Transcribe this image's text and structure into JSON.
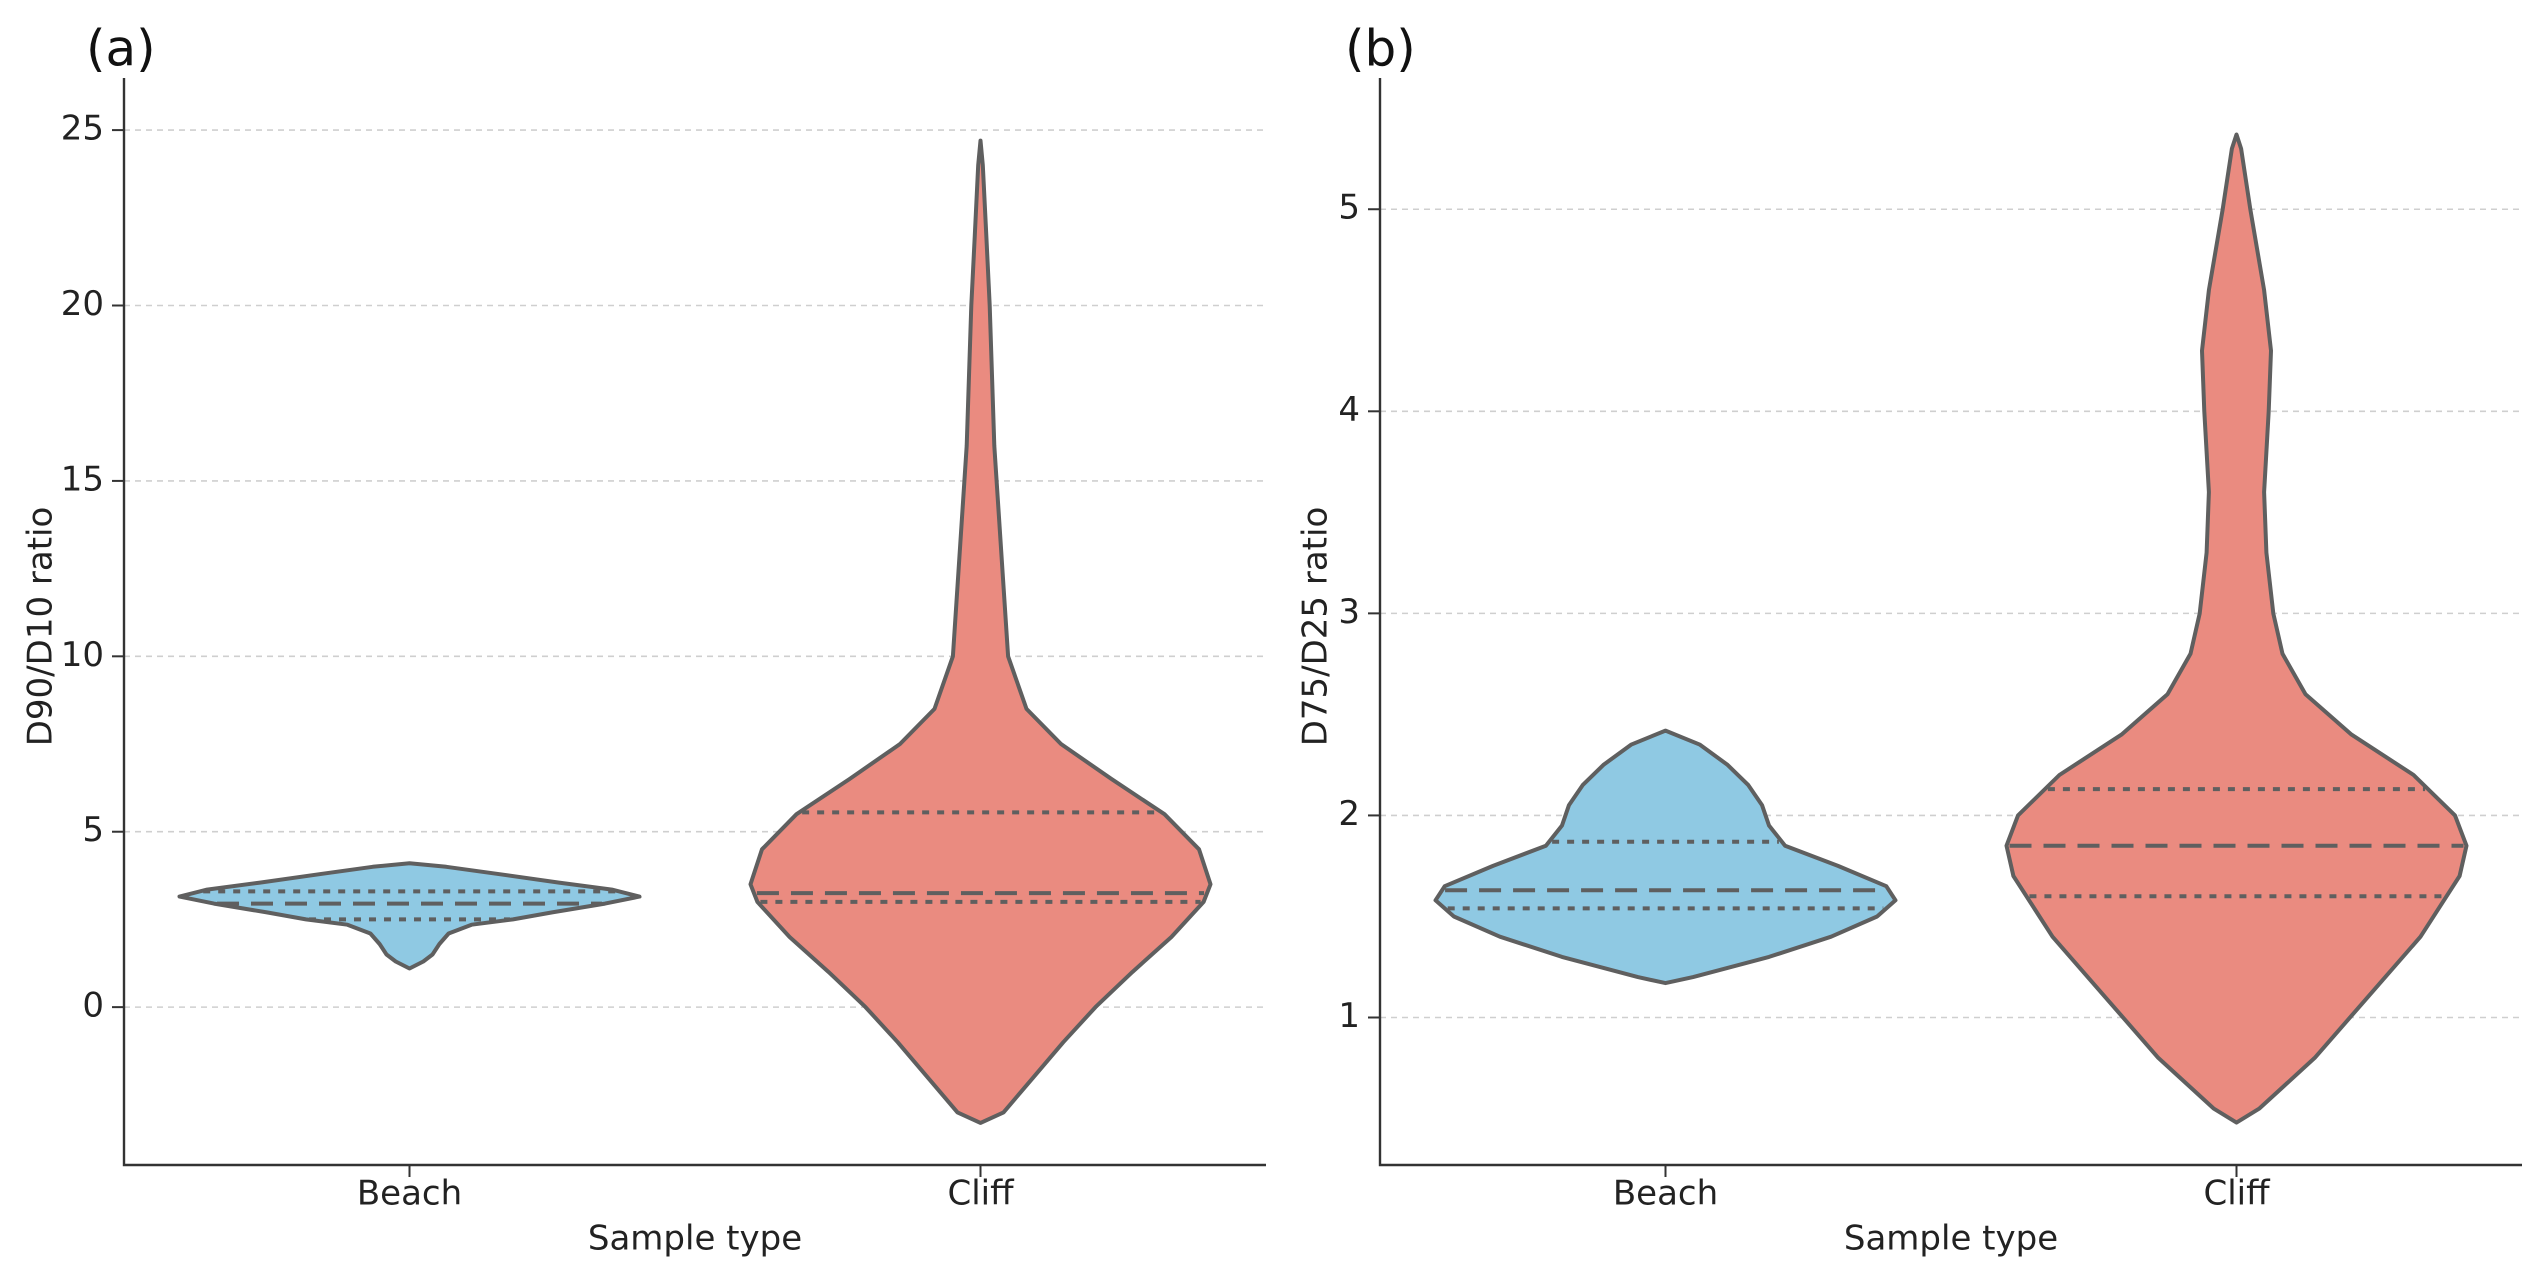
{
  "chart_data": [
    {
      "type": "violin",
      "panel_label": "(a)",
      "xlabel": "Sample type",
      "ylabel": "D90/D10 ratio",
      "ylim": [
        -4.5,
        26.2
      ],
      "yticks": [
        0,
        5,
        10,
        15,
        20,
        25
      ],
      "grid": true,
      "categories": [
        "Beach",
        "Cliff"
      ],
      "colors": [
        "#8fc9e3",
        "#ea8b80"
      ],
      "violins": [
        {
          "name": "Beach",
          "min": 1.1,
          "max": 4.1,
          "q1": 2.5,
          "median": 2.95,
          "q3": 3.3,
          "profile": [
            [
              1.1,
              0.0
            ],
            [
              1.3,
              0.06
            ],
            [
              1.5,
              0.1
            ],
            [
              1.8,
              0.13
            ],
            [
              2.1,
              0.17
            ],
            [
              2.35,
              0.27
            ],
            [
              2.5,
              0.45
            ],
            [
              2.7,
              0.62
            ],
            [
              2.95,
              0.85
            ],
            [
              3.15,
              1.0
            ],
            [
              3.35,
              0.88
            ],
            [
              3.55,
              0.65
            ],
            [
              3.8,
              0.38
            ],
            [
              4.0,
              0.16
            ],
            [
              4.1,
              0.0
            ]
          ]
        },
        {
          "name": "Cliff",
          "min": -3.3,
          "max": 24.7,
          "q1": 3.0,
          "median": 3.25,
          "q3": 5.55,
          "profile": [
            [
              -3.3,
              0.0
            ],
            [
              -3.0,
              0.1
            ],
            [
              -2.0,
              0.23
            ],
            [
              -1.0,
              0.36
            ],
            [
              0.0,
              0.5
            ],
            [
              1.0,
              0.66
            ],
            [
              2.0,
              0.83
            ],
            [
              3.0,
              0.97
            ],
            [
              3.5,
              1.0
            ],
            [
              4.5,
              0.95
            ],
            [
              5.5,
              0.8
            ],
            [
              6.5,
              0.57
            ],
            [
              7.5,
              0.35
            ],
            [
              8.5,
              0.2
            ],
            [
              10.0,
              0.12
            ],
            [
              12.0,
              0.1
            ],
            [
              14.0,
              0.08
            ],
            [
              16.0,
              0.06
            ],
            [
              18.0,
              0.05
            ],
            [
              20.0,
              0.04
            ],
            [
              22.0,
              0.025
            ],
            [
              24.0,
              0.01
            ],
            [
              24.7,
              0.0
            ]
          ]
        }
      ]
    },
    {
      "type": "violin",
      "panel_label": "(b)",
      "xlabel": "Sample type",
      "ylabel": "D75/D25 ratio",
      "ylim": [
        0.27,
        5.6
      ],
      "yticks": [
        1,
        2,
        3,
        4,
        5
      ],
      "grid": true,
      "categories": [
        "Beach",
        "Cliff"
      ],
      "colors": [
        "#8fc9e3",
        "#ea8b80"
      ],
      "violins": [
        {
          "name": "Beach",
          "min": 1.17,
          "max": 2.42,
          "q1": 1.54,
          "median": 1.63,
          "q3": 1.87,
          "profile": [
            [
              1.17,
              0.0
            ],
            [
              1.2,
              0.12
            ],
            [
              1.3,
              0.45
            ],
            [
              1.4,
              0.72
            ],
            [
              1.5,
              0.92
            ],
            [
              1.58,
              1.0
            ],
            [
              1.65,
              0.96
            ],
            [
              1.75,
              0.75
            ],
            [
              1.85,
              0.52
            ],
            [
              1.95,
              0.45
            ],
            [
              2.05,
              0.42
            ],
            [
              2.15,
              0.36
            ],
            [
              2.25,
              0.27
            ],
            [
              2.35,
              0.15
            ],
            [
              2.42,
              0.0
            ]
          ]
        },
        {
          "name": "Cliff",
          "min": 0.48,
          "max": 5.37,
          "q1": 1.6,
          "median": 1.85,
          "q3": 2.13,
          "profile": [
            [
              0.48,
              0.0
            ],
            [
              0.55,
              0.1
            ],
            [
              0.8,
              0.34
            ],
            [
              1.1,
              0.57
            ],
            [
              1.4,
              0.8
            ],
            [
              1.7,
              0.97
            ],
            [
              1.85,
              1.0
            ],
            [
              2.0,
              0.95
            ],
            [
              2.2,
              0.77
            ],
            [
              2.4,
              0.5
            ],
            [
              2.6,
              0.3
            ],
            [
              2.8,
              0.2
            ],
            [
              3.0,
              0.16
            ],
            [
              3.3,
              0.13
            ],
            [
              3.6,
              0.12
            ],
            [
              4.0,
              0.14
            ],
            [
              4.3,
              0.15
            ],
            [
              4.6,
              0.12
            ],
            [
              5.0,
              0.06
            ],
            [
              5.3,
              0.02
            ],
            [
              5.37,
              0.0
            ]
          ]
        }
      ]
    }
  ]
}
